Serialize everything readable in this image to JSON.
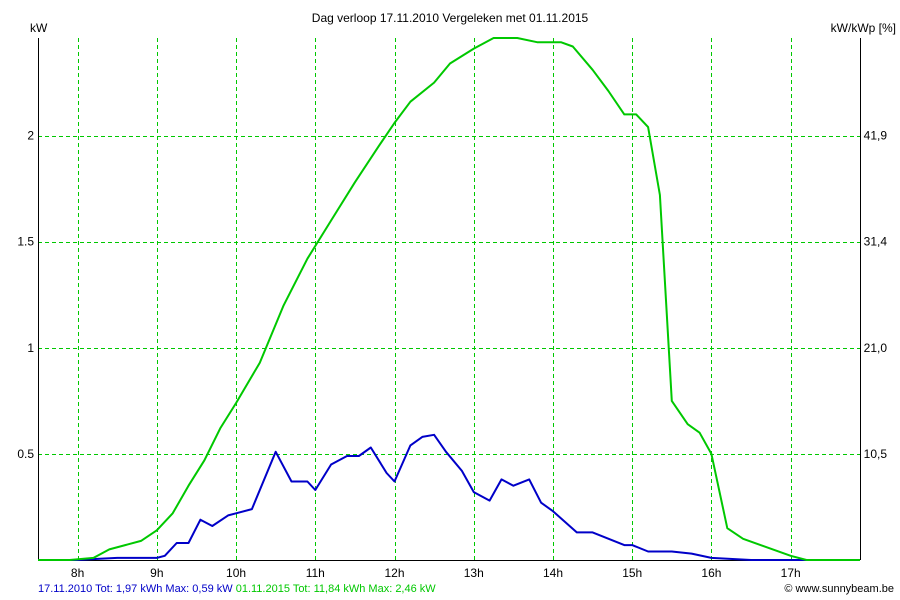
{
  "chart_data": {
    "type": "line",
    "title": "Dag  verloop 17.11.2010   Vergeleken met 01.11.2015",
    "ylabel_left": "kW",
    "ylabel_right": "kW/kWp [%]",
    "x_unit": "hour",
    "xlim": [
      7.5,
      17.875
    ],
    "ylim": [
      0,
      2.46
    ],
    "x_ticks": [
      {
        "value": 8,
        "label": "8h"
      },
      {
        "value": 9,
        "label": "9h"
      },
      {
        "value": 10,
        "label": "10h"
      },
      {
        "value": 11,
        "label": "11h"
      },
      {
        "value": 12,
        "label": "12h"
      },
      {
        "value": 13,
        "label": "13h"
      },
      {
        "value": 14,
        "label": "14h"
      },
      {
        "value": 15,
        "label": "15h"
      },
      {
        "value": 16,
        "label": "16h"
      },
      {
        "value": 17,
        "label": "17h"
      }
    ],
    "y_ticks_left": [
      {
        "value": 0.5,
        "label": "0.5"
      },
      {
        "value": 1,
        "label": "1"
      },
      {
        "value": 1.5,
        "label": "1.5"
      },
      {
        "value": 2,
        "label": "2"
      }
    ],
    "y_ticks_right": [
      {
        "value": 0.5,
        "label": "10,5"
      },
      {
        "value": 1,
        "label": "21,0"
      },
      {
        "value": 1.5,
        "label": "31,4"
      },
      {
        "value": 2,
        "label": "41,9"
      }
    ],
    "grid": true,
    "colors": {
      "grid": "#00c800",
      "axis": "#000000"
    },
    "series": [
      {
        "name": "17.11.2010",
        "color": "#0000c8",
        "points": [
          [
            7.5,
            0
          ],
          [
            8.0,
            0
          ],
          [
            8.25,
            0.005
          ],
          [
            8.5,
            0.01
          ],
          [
            8.75,
            0.01
          ],
          [
            9.0,
            0.01
          ],
          [
            9.1,
            0.02
          ],
          [
            9.25,
            0.08
          ],
          [
            9.4,
            0.08
          ],
          [
            9.55,
            0.19
          ],
          [
            9.7,
            0.16
          ],
          [
            9.9,
            0.21
          ],
          [
            10.0,
            0.22
          ],
          [
            10.2,
            0.24
          ],
          [
            10.5,
            0.51
          ],
          [
            10.7,
            0.37
          ],
          [
            10.9,
            0.37
          ],
          [
            11.0,
            0.33
          ],
          [
            11.2,
            0.45
          ],
          [
            11.4,
            0.49
          ],
          [
            11.55,
            0.49
          ],
          [
            11.7,
            0.53
          ],
          [
            11.9,
            0.41
          ],
          [
            12.0,
            0.37
          ],
          [
            12.2,
            0.54
          ],
          [
            12.35,
            0.58
          ],
          [
            12.5,
            0.59
          ],
          [
            12.65,
            0.51
          ],
          [
            12.85,
            0.42
          ],
          [
            13.0,
            0.32
          ],
          [
            13.2,
            0.28
          ],
          [
            13.35,
            0.38
          ],
          [
            13.5,
            0.35
          ],
          [
            13.7,
            0.38
          ],
          [
            13.85,
            0.27
          ],
          [
            14.0,
            0.23
          ],
          [
            14.3,
            0.13
          ],
          [
            14.5,
            0.13
          ],
          [
            14.9,
            0.07
          ],
          [
            15.0,
            0.07
          ],
          [
            15.2,
            0.04
          ],
          [
            15.5,
            0.04
          ],
          [
            15.75,
            0.03
          ],
          [
            16.0,
            0.01
          ],
          [
            16.5,
            0
          ],
          [
            17.0,
            0
          ],
          [
            17.875,
            0
          ]
        ]
      },
      {
        "name": "01.11.2015",
        "color": "#00c800",
        "points": [
          [
            7.5,
            0
          ],
          [
            7.9,
            0
          ],
          [
            8.2,
            0.01
          ],
          [
            8.4,
            0.05
          ],
          [
            8.6,
            0.07
          ],
          [
            8.8,
            0.09
          ],
          [
            9.0,
            0.14
          ],
          [
            9.2,
            0.22
          ],
          [
            9.4,
            0.35
          ],
          [
            9.6,
            0.47
          ],
          [
            9.8,
            0.62
          ],
          [
            10.0,
            0.74
          ],
          [
            10.3,
            0.93
          ],
          [
            10.6,
            1.2
          ],
          [
            10.9,
            1.42
          ],
          [
            11.2,
            1.6
          ],
          [
            11.5,
            1.78
          ],
          [
            11.8,
            1.95
          ],
          [
            12.0,
            2.06
          ],
          [
            12.2,
            2.16
          ],
          [
            12.5,
            2.25
          ],
          [
            12.7,
            2.34
          ],
          [
            13.0,
            2.41
          ],
          [
            13.25,
            2.46
          ],
          [
            13.55,
            2.46
          ],
          [
            13.8,
            2.44
          ],
          [
            14.1,
            2.44
          ],
          [
            14.25,
            2.42
          ],
          [
            14.5,
            2.31
          ],
          [
            14.7,
            2.21
          ],
          [
            14.9,
            2.1
          ],
          [
            15.05,
            2.1
          ],
          [
            15.2,
            2.04
          ],
          [
            15.35,
            1.72
          ],
          [
            15.5,
            0.75
          ],
          [
            15.7,
            0.64
          ],
          [
            15.85,
            0.6
          ],
          [
            16.0,
            0.5
          ],
          [
            16.2,
            0.15
          ],
          [
            16.4,
            0.1
          ],
          [
            16.7,
            0.06
          ],
          [
            17.0,
            0.02
          ],
          [
            17.2,
            0
          ],
          [
            17.875,
            0
          ]
        ]
      }
    ]
  },
  "footer": {
    "blue_text": "17.11.2010 Tot: 1,97 kWh Max: 0,59 kW",
    "green_text": "01.11.2015 Tot: 11,84 kWh Max: 2,46 kW",
    "credit": "© www.sunnybeam.be"
  }
}
